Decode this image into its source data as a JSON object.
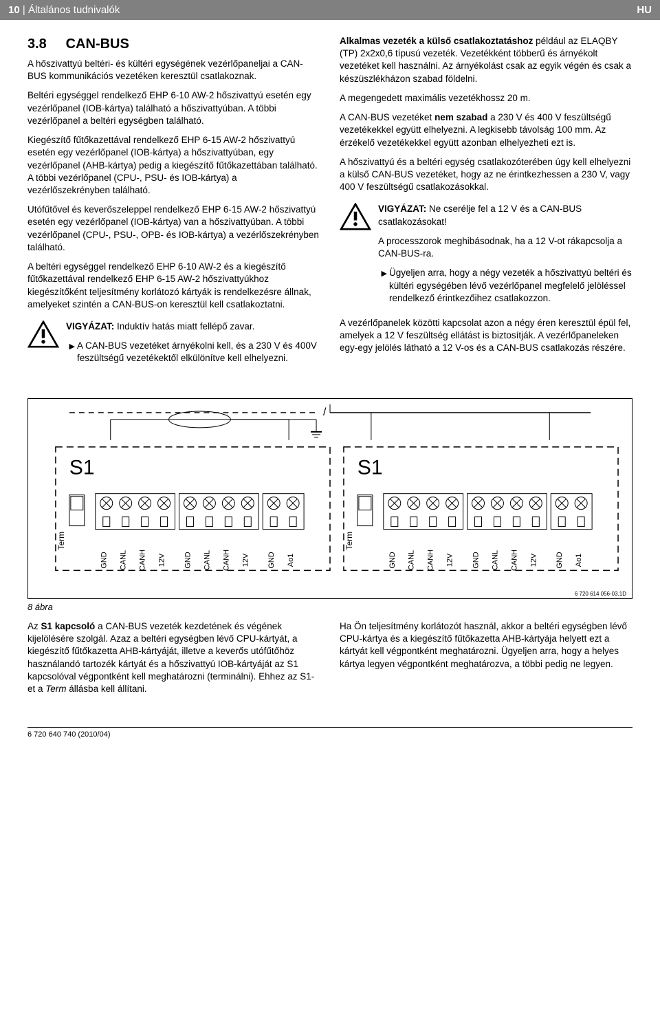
{
  "header": {
    "page_num": "10",
    "section": "Általános tudnivalók",
    "lang": "HU"
  },
  "left": {
    "heading_num": "3.8",
    "heading_txt": "CAN-BUS",
    "p1": "A hőszivattyú beltéri- és kültéri egységének vezérlőpaneljai a CAN-BUS kommunikációs vezetéken keresztül csatlakoznak.",
    "p2": "Beltéri egységgel rendelkező EHP 6-10 AW-2 hőszivattyú esetén egy vezérlőpanel (IOB-kártya) található a hőszivattyúban. A többi vezérlőpanel a beltéri egységben található.",
    "p3": "Kiegészítő fűtőkazettával rendelkező EHP 6-15 AW-2 hőszivattyú esetén egy vezérlőpanel (IOB-kártya) a hőszivattyúban, egy vezérlőpanel (AHB-kártya) pedig a kiegészítő fűtőkazettában található. A többi vezérlőpanel (CPU-, PSU- és IOB-kártya) a vezérlőszekrényben található.",
    "p4": "Utófűtővel és keverőszeleppel rendelkező EHP 6-15 AW-2 hőszivattyú esetén egy vezérlőpanel (IOB-kártya) van a hőszivattyúban. A többi vezérlőpanel (CPU-, PSU-, OPB- és IOB-kártya) a vezérlőszekrényben található.",
    "p5": "A beltéri egységgel rendelkező EHP 6-10 AW-2 és a kiegészítő fűtőkazettával rendelkező EHP 6-15 AW-2 hőszivattyúkhoz kiegészítőként teljesítmény korlátozó kártyák is rendelkezésre állnak, amelyeket szintén a CAN-BUS-on keresztül kell csatlakoztatni.",
    "warn1_label": "VIGYÁZAT:",
    "warn1_txt": " Induktív hatás miatt fellépő zavar.",
    "warn1_li1": "A CAN-BUS vezetéket árnyékolni kell, és a 230 V és 400V feszültségű vezetékektől elkülönítve kell elhelyezni."
  },
  "right": {
    "p1a": "Alkalmas vezeték a külső csatlakoztatáshoz",
    "p1b": " például az ELAQBY (TP) 2x2x0,6 típusú vezeték. Vezetékként többerű és árnyékolt vezetéket kell használni. Az árnyékolást csak az egyik végén és csak a készüszlékházon szabad földelni.",
    "p2": "A megengedett maximális vezetékhossz 20 m.",
    "p3a": "A CAN-BUS vezetéket ",
    "p3b": "nem szabad",
    "p3c": " a 230 V és 400 V feszültségű vezetékekkel együtt elhelyezni. A legkisebb távolság 100 mm. Az érzékelő vezetékekkel együtt azonban elhelyezheti ezt is.",
    "p4": "A hőszivattyú és a beltéri egység csatlakozóterében úgy kell elhelyezni a külső CAN-BUS vezetéket, hogy az ne érintkezhessen a 230 V, vagy 400 V feszültségű csatlakozásokkal.",
    "warn1_label": "VIGYÁZAT:",
    "warn1_txt": " Ne cserélje fel a 12 V és a CAN-BUS csatlakozásokat!",
    "warn1_p2": "A processzorok meghibásodnak, ha a 12 V-ot rákapcsolja a CAN-BUS-ra.",
    "warn1_li1": "Ügyeljen arra, hogy a négy vezeték a hőszivattyú beltéri és kültéri egységében lévő vezérlőpanel megfelelő jelöléssel rendelkező érintkezőihez csatlakozzon.",
    "p5": "A vezérlőpanelek közötti kapcsolat azon a négy éren keresztül épül fel, amelyek a 12 V feszültség ellátást is biztosítják. A vezérlőpaneleken egy-egy jelölés látható a 12 V-os és a CAN-BUS csatlakozás részére."
  },
  "diagram": {
    "labels": [
      "GND",
      "CANL",
      "CANH",
      "12V",
      "GND",
      "CANL",
      "CANH",
      "12V",
      "GND",
      "Ao1"
    ],
    "s1": "S1",
    "term": "Term",
    "code": "6 720 614 056-03.1D"
  },
  "fig_label": "8 ábra",
  "bottom": {
    "left": "Az <b>S1 kapcsoló</b> a CAN-BUS vezeték kezdetének és végének kijelölésére szolgál. Azaz a beltéri egységben lévő CPU-kártyát, a kiegészítő fűtőkazetta AHB-kártyáját, illetve a keverős utófűtőhöz használandó tartozék kártyát és a hőszivattyú IOB-kártyáját az S1 kapcsolóval végpontként kell meghatározni (terminálni). Ehhez az S1-et a <i>Term</i> állásba kell állítani.",
    "left_p1a": "Az ",
    "left_p1b": "S1 kapcsoló",
    "left_p1c": " a CAN-BUS vezeték kezdetének és végének kijelölésére szolgál. Azaz a beltéri egységben lévő CPU-kártyát, a kiegészítő fűtőkazetta AHB-kártyáját, illetve a keverős utófűtőhöz használandó tartozék kártyát és a hőszivattyú IOB-kártyáját az S1 kapcsolóval végpontként kell meghatározni (terminálni). Ehhez az S1-et a ",
    "left_p1d": "Term",
    "left_p1e": " állásba kell állítani.",
    "right": "Ha Ön teljesítmény korlátozót használ, akkor a beltéri egységben lévő CPU-kártya és a kiegészítő fűtőkazetta AHB-kártyája helyett ezt a kártyát kell végpontként meghatározni. Ügyeljen arra, hogy a helyes kártya legyen végpontként meghatározva, a többi pedig ne legyen."
  },
  "footer": "6 720 640 740 (2010/04)",
  "colors": {
    "header_bg": "#808080",
    "text": "#000000",
    "bg": "#ffffff"
  }
}
